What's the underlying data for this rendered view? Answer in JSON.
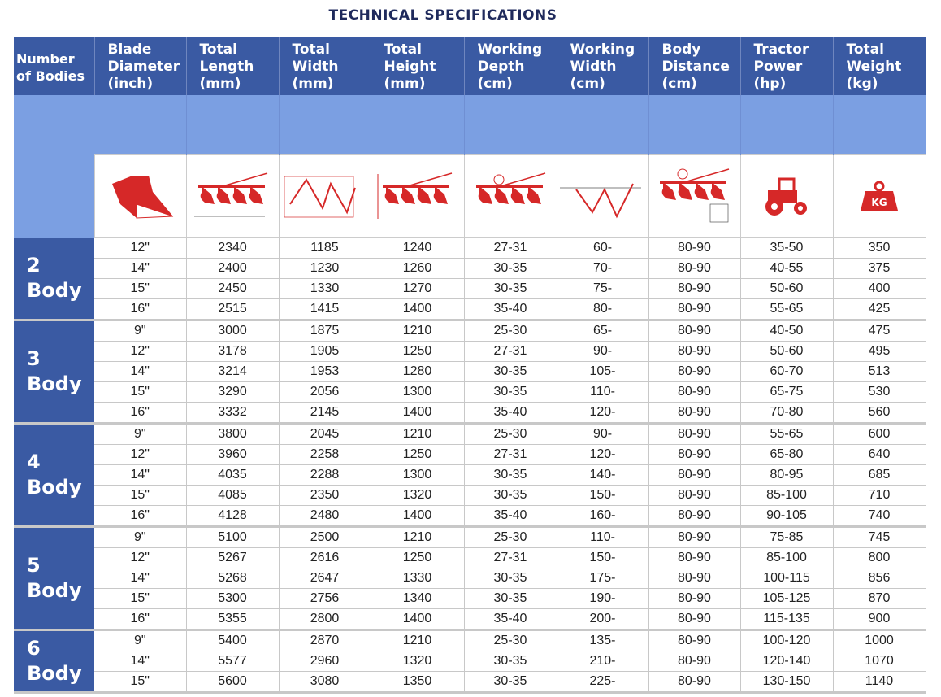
{
  "title": "TECHNICAL SPECIFICATIONS",
  "headers": [
    "Number of Bodies",
    "Blade Diameter (inch)",
    "Total Length (mm)",
    "Total Width (mm)",
    "Total Height (mm)",
    "Working Depth (cm)",
    "Working Width (cm)",
    "Body Distance (cm)",
    "Tractor Power (hp)",
    "Total Weight (kg)"
  ],
  "icons": [
    "plough-blade-icon",
    "plough-length-diagram-icon",
    "plough-width-diagram-icon",
    "plough-height-diagram-icon",
    "plough-depth-diagram-icon",
    "plough-working-width-diagram-icon",
    "plough-body-distance-diagram-icon",
    "tractor-icon",
    "weight-kg-icon"
  ],
  "weight_icon_label": "KG",
  "colors": {
    "header": "#3a5aa3",
    "band": "#7b9fe2",
    "icon": "#d62828"
  },
  "groups": [
    {
      "label": "2 Body",
      "rows": [
        [
          "12\"",
          "2340",
          "1185",
          "1240",
          "27-31",
          "60-",
          "80-90",
          "35-50",
          "350"
        ],
        [
          "14\"",
          "2400",
          "1230",
          "1260",
          "30-35",
          "70-",
          "80-90",
          "40-55",
          "375"
        ],
        [
          "15\"",
          "2450",
          "1330",
          "1270",
          "30-35",
          "75-",
          "80-90",
          "50-60",
          "400"
        ],
        [
          "16\"",
          "2515",
          "1415",
          "1400",
          "35-40",
          "80-",
          "80-90",
          "55-65",
          "425"
        ]
      ]
    },
    {
      "label": "3 Body",
      "rows": [
        [
          "9\"",
          "3000",
          "1875",
          "1210",
          "25-30",
          "65-",
          "80-90",
          "40-50",
          "475"
        ],
        [
          "12\"",
          "3178",
          "1905",
          "1250",
          "27-31",
          "90-",
          "80-90",
          "50-60",
          "495"
        ],
        [
          "14\"",
          "3214",
          "1953",
          "1280",
          "30-35",
          "105-",
          "80-90",
          "60-70",
          "513"
        ],
        [
          "15\"",
          "3290",
          "2056",
          "1300",
          "30-35",
          "110-",
          "80-90",
          "65-75",
          "530"
        ],
        [
          "16\"",
          "3332",
          "2145",
          "1400",
          "35-40",
          "120-",
          "80-90",
          "70-80",
          "560"
        ]
      ]
    },
    {
      "label": "4 Body",
      "rows": [
        [
          "9\"",
          "3800",
          "2045",
          "1210",
          "25-30",
          "90-",
          "80-90",
          "55-65",
          "600"
        ],
        [
          "12\"",
          "3960",
          "2258",
          "1250",
          "27-31",
          "120-",
          "80-90",
          "65-80",
          "640"
        ],
        [
          "14\"",
          "4035",
          "2288",
          "1300",
          "30-35",
          "140-",
          "80-90",
          "80-95",
          "685"
        ],
        [
          "15\"",
          "4085",
          "2350",
          "1320",
          "30-35",
          "150-",
          "80-90",
          "85-100",
          "710"
        ],
        [
          "16\"",
          "4128",
          "2480",
          "1400",
          "35-40",
          "160-",
          "80-90",
          "90-105",
          "740"
        ]
      ]
    },
    {
      "label": "5 Body",
      "rows": [
        [
          "9\"",
          "5100",
          "2500",
          "1210",
          "25-30",
          "110-",
          "80-90",
          "75-85",
          "745"
        ],
        [
          "12\"",
          "5267",
          "2616",
          "1250",
          "27-31",
          "150-",
          "80-90",
          "85-100",
          "800"
        ],
        [
          "14\"",
          "5268",
          "2647",
          "1330",
          "30-35",
          "175-",
          "80-90",
          "100-115",
          "856"
        ],
        [
          "15\"",
          "5300",
          "2756",
          "1340",
          "30-35",
          "190-",
          "80-90",
          "105-125",
          "870"
        ],
        [
          "16\"",
          "5355",
          "2800",
          "1400",
          "35-40",
          "200-",
          "80-90",
          "115-135",
          "900"
        ]
      ]
    },
    {
      "label": "6 Body",
      "rows": [
        [
          "9\"",
          "5400",
          "2870",
          "1210",
          "25-30",
          "135-",
          "80-90",
          "100-120",
          "1000"
        ],
        [
          "14\"",
          "5577",
          "2960",
          "1320",
          "30-35",
          "210-",
          "80-90",
          "120-140",
          "1070"
        ],
        [
          "15\"",
          "5600",
          "3080",
          "1350",
          "30-35",
          "225-",
          "80-90",
          "130-150",
          "1140"
        ]
      ]
    }
  ]
}
